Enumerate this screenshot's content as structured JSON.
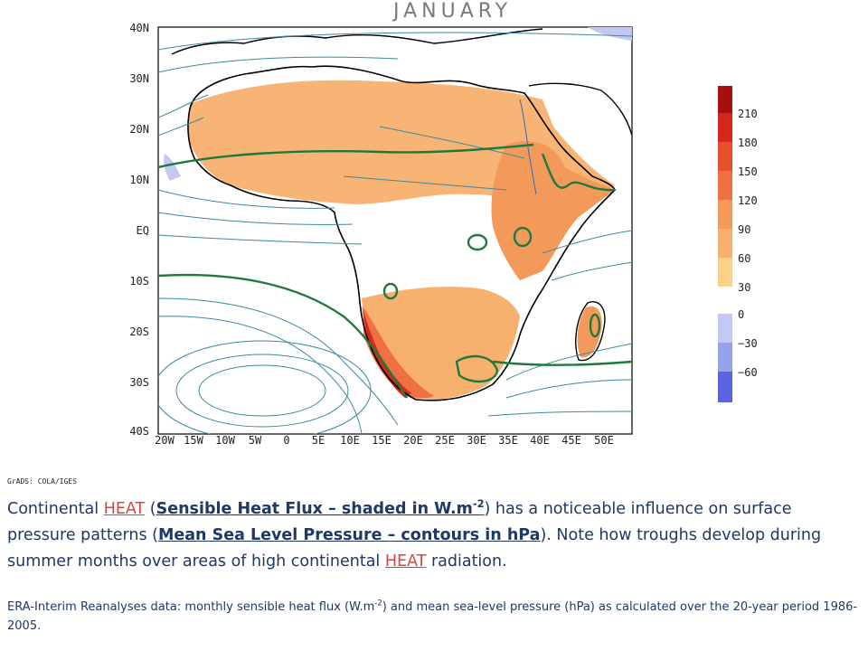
{
  "title": "JANUARY",
  "y_axis_labels": [
    "40N",
    "30N",
    "20N",
    "10N",
    "EQ",
    "10S",
    "20S",
    "30S",
    "40S"
  ],
  "x_axis_labels": [
    "20W",
    "15W",
    "10W",
    "5W",
    "0",
    "5E",
    "10E",
    "15E",
    "20E",
    "25E",
    "30E",
    "35E",
    "40E",
    "45E",
    "50E"
  ],
  "credit": "GrADS: COLA/IGES",
  "legend": {
    "positive": [
      {
        "label": "210",
        "color": "#a50f0f"
      },
      {
        "label": "180",
        "color": "#d7261e"
      },
      {
        "label": "150",
        "color": "#e6502c"
      },
      {
        "label": "120",
        "color": "#ee7043"
      },
      {
        "label": "90",
        "color": "#f39a5b"
      },
      {
        "label": "60",
        "color": "#f7b06d"
      },
      {
        "label": "30",
        "color": "#fbd08a"
      }
    ],
    "negative": [
      {
        "label": "0",
        "color": "#c3c8f2"
      },
      {
        "label": "−30",
        "color": "#9aa1ec"
      },
      {
        "label": "−60",
        "color": "#5a63e0"
      }
    ]
  },
  "caption": {
    "p1": "Continental ",
    "heat": "HEAT",
    "p2": " (",
    "shf": "Sensible Heat Flux – shaded in W.m",
    "sup1": "-2",
    "p3": ") has a noticeable influence on surface pressure patterns (",
    "mslp": "Mean Sea Level Pressure – contours in hPa",
    "p4": "). Note how troughs develop during summer months over areas of high continental ",
    "heat2": "HEAT",
    "p5": " radiation."
  },
  "note": {
    "a": "ERA-Interim Reanalyses data: monthly sensible heat flux (W.m",
    "sup": "-2",
    "b": ") and mean sea-level pressure (hPa) as calculated over the 20-year period 1986-2005."
  }
}
